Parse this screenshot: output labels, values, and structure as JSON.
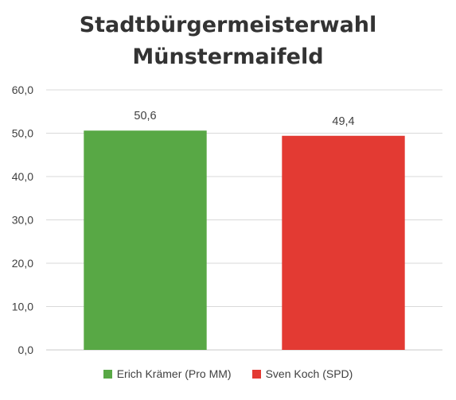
{
  "chart_data": {
    "type": "bar",
    "title_lines": [
      "Stadtbürgermeisterwahl",
      "Münstermaifeld"
    ],
    "categories": [
      "Erich Krämer (Pro MM)",
      "Sven Koch (SPD)"
    ],
    "values": [
      50.6,
      49.4
    ],
    "data_labels": [
      "50,6",
      "49,4"
    ],
    "colors": [
      "#58a845",
      "#e33a33"
    ],
    "ylim": [
      0,
      60
    ],
    "yticks": [
      "0,0",
      "10,0",
      "20,0",
      "30,0",
      "40,0",
      "50,0",
      "60,0"
    ],
    "grid": true,
    "legend": "bottom"
  }
}
